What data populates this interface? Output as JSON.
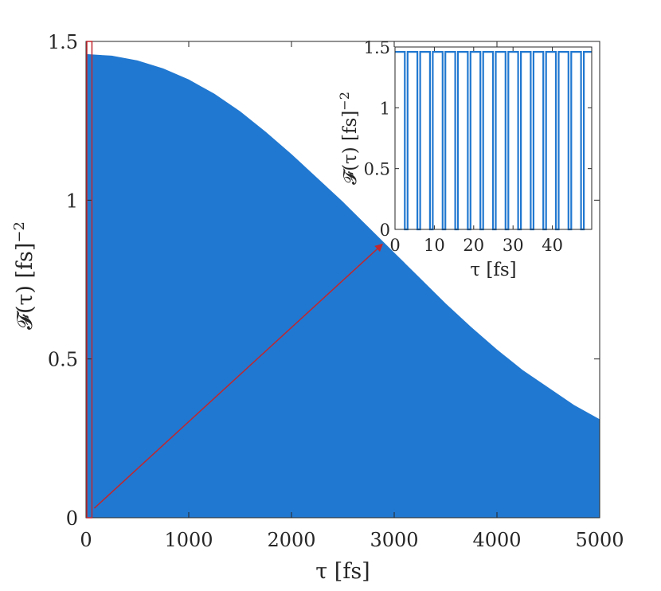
{
  "colors": {
    "fill": "#2178d0",
    "axis": "#262626",
    "highlight": "#c1272d",
    "background": "#ffffff"
  },
  "chart_data": [
    {
      "type": "area",
      "role": "main",
      "xlim": [
        0,
        5000
      ],
      "ylim": [
        0,
        1.5
      ],
      "xticks": [
        0,
        1000,
        2000,
        3000,
        4000,
        5000
      ],
      "yticks": [
        0,
        0.5,
        1,
        1.5
      ],
      "xtick_labels": [
        "0",
        "1000",
        "2000",
        "3000",
        "4000",
        "5000"
      ],
      "ytick_labels": [
        "0",
        "0.5",
        "1",
        "1.5"
      ],
      "xlabel": "τ [fs]",
      "ylabel": "𝓕(τ) [fs]",
      "ylabel_exponent": "−2",
      "envelope": {
        "x": [
          0,
          250,
          500,
          750,
          1000,
          1250,
          1500,
          1750,
          2000,
          2250,
          2500,
          2750,
          3000,
          3250,
          3500,
          3750,
          4000,
          4250,
          4500,
          4750,
          5000
        ],
        "y": [
          1.46,
          1.455,
          1.44,
          1.415,
          1.38,
          1.335,
          1.28,
          1.215,
          1.145,
          1.07,
          0.995,
          0.915,
          0.835,
          0.755,
          0.675,
          0.6,
          0.53,
          0.465,
          0.41,
          0.355,
          0.31
        ]
      },
      "lower_bound": 0,
      "highlight_box": {
        "x": [
          0,
          50
        ],
        "y": [
          0,
          1.5
        ]
      },
      "arrow": {
        "from": [
          50,
          0.03
        ],
        "to": [
          2880,
          0.86
        ]
      }
    },
    {
      "type": "line",
      "role": "inset",
      "xlim": [
        0,
        50
      ],
      "ylim": [
        0,
        1.5
      ],
      "xticks": [
        0,
        10,
        20,
        30,
        40
      ],
      "yticks": [
        0,
        0.5,
        1,
        1.5
      ],
      "xtick_labels": [
        "0",
        "10",
        "20",
        "30",
        "40"
      ],
      "ytick_labels": [
        "0",
        "0.5",
        "1",
        "1.5"
      ],
      "xlabel": "τ [fs]",
      "ylabel": "𝓕(τ) [fs]",
      "ylabel_exponent": "−2",
      "series": {
        "shape": "square-pulse train",
        "period": 3.2,
        "duty_high": 0.78,
        "high": 1.46,
        "low": 0
      }
    }
  ]
}
